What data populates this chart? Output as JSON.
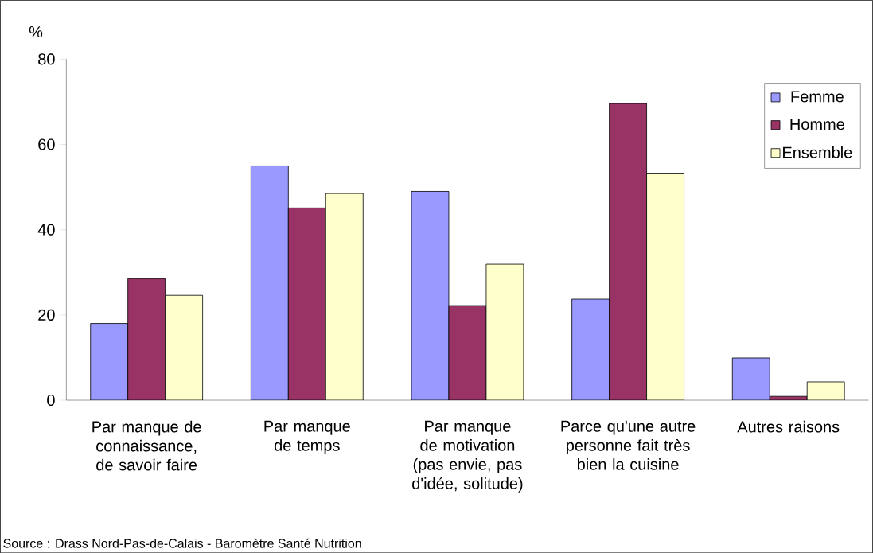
{
  "chart_data": {
    "type": "bar",
    "ylabel": "%",
    "categories": [
      "Par manque de connaissance, de savoir faire",
      "Par manque de temps",
      "Par manque de motivation (pas envie, pas d'idée, solitude)",
      "Parce qu'une autre personne fait très bien la cuisine",
      "Autres raisons"
    ],
    "series": [
      {
        "name": "Femme",
        "color": "#9999ff",
        "values": [
          18,
          55,
          49,
          23.7,
          9.9
        ]
      },
      {
        "name": "Homme",
        "color": "#993366",
        "values": [
          28.5,
          45.1,
          22.2,
          69.6,
          0.9
        ]
      },
      {
        "name": "Ensemble",
        "color": "#ffffcc",
        "values": [
          24.6,
          48.5,
          31.9,
          53.1,
          4.3
        ]
      }
    ],
    "ylim": [
      0,
      80
    ],
    "yticks": [
      0,
      20,
      40,
      60,
      80
    ],
    "grid": false,
    "legend": "top right",
    "annotations": [
      "Source : Drass Nord-Pas-de-Calais - Baromètre Santé Nutrition"
    ]
  }
}
